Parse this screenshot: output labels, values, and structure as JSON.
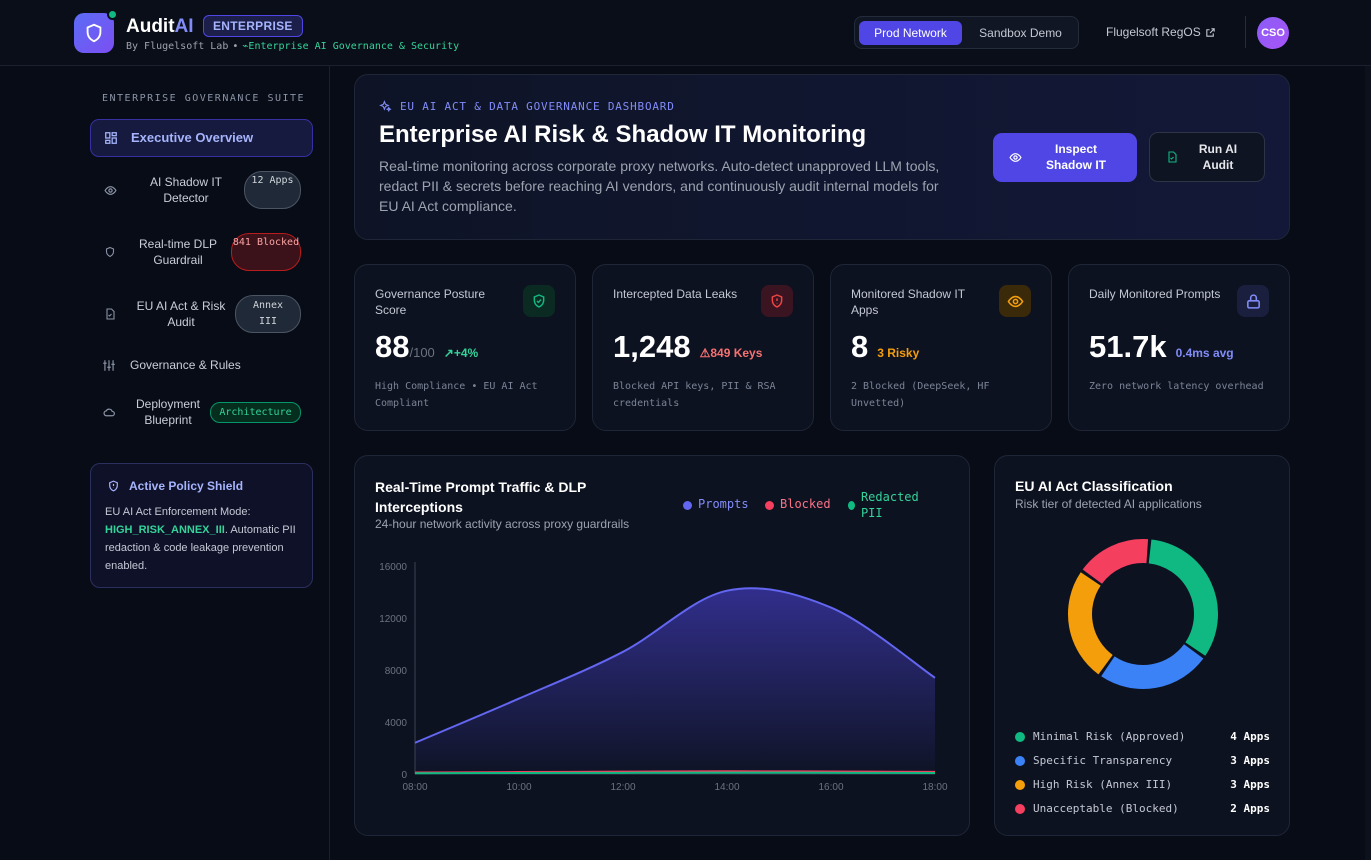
{
  "header": {
    "brand_main": "Audit",
    "brand_accent": "AI",
    "edition_badge": "ENTERPRISE",
    "byline": "By Flugelsoft Lab",
    "byline_sep": "•",
    "tagline": "Enterprise AI Governance & Security",
    "network_tabs": [
      {
        "label": "Prod Network",
        "active": true
      },
      {
        "label": "Sandbox Demo",
        "active": false
      }
    ],
    "regos_link": "Flugelsoft RegOS",
    "avatar": "CSO"
  },
  "sidebar": {
    "section_title": "ENTERPRISE GOVERNANCE SUITE",
    "items": [
      {
        "label": "Executive Overview",
        "icon": "grid-icon",
        "active": true
      },
      {
        "label": "AI Shadow IT Detector",
        "icon": "eye-icon",
        "badge": "12 Apps"
      },
      {
        "label": "Real-time DLP Guardrail",
        "icon": "shield-icon",
        "badge": "841 Blocked"
      },
      {
        "label": "EU AI Act & Risk Audit",
        "icon": "file-check-icon",
        "badge": "Annex III"
      },
      {
        "label": "Governance & Rules",
        "icon": "sliders-icon"
      },
      {
        "label": "Deployment Blueprint",
        "icon": "cloud-icon",
        "badge": "Architecture"
      }
    ],
    "policy": {
      "title": "Active Policy Shield",
      "text_before": "EU AI Act Enforcement Mode: ",
      "mode": "HIGH_RISK_ANNEX_III",
      "text_after": ". Automatic PII redaction & code leakage prevention enabled."
    }
  },
  "hero": {
    "tag": "EU AI ACT & DATA GOVERNANCE DASHBOARD",
    "title": "Enterprise AI Risk & Shadow IT Monitoring",
    "description": "Real-time monitoring across corporate proxy networks. Auto-detect unapproved LLM tools, redact PII & secrets before reaching AI vendors, and continuously audit internal models for EU AI Act compliance.",
    "inspect_button": "Inspect Shadow IT",
    "audit_button": "Run AI Audit"
  },
  "stats": [
    {
      "label": "Governance Posture Score",
      "value": "88",
      "suffix": "/100",
      "delta": "+4%",
      "delta_color": "#34d399",
      "footer": "High Compliance • EU AI Act Compliant",
      "icon": "shield-check-icon",
      "icon_color": "#10b981"
    },
    {
      "label": "Intercepted Data Leaks",
      "value": "1,248",
      "delta": "849 Keys",
      "delta_color": "#f87171",
      "footer": "Blocked API keys, PII & RSA credentials",
      "icon": "shield-alert-icon",
      "icon_color": "#ef4444"
    },
    {
      "label": "Monitored Shadow IT Apps",
      "value": "8",
      "delta": "3 Risky",
      "delta_color": "#f59e0b",
      "footer": "2 Blocked (DeepSeek, HF Unvetted)",
      "icon": "eye-icon",
      "icon_color": "#f59e0b"
    },
    {
      "label": "Daily Monitored Prompts",
      "value": "51.7k",
      "delta": "0.4ms avg",
      "delta_color": "#818cf8",
      "footer": "Zero network latency overhead",
      "icon": "lock-icon",
      "icon_color": "#818cf8"
    }
  ],
  "traffic_chart": {
    "title": "Real-Time Prompt Traffic & DLP Interceptions",
    "subtitle": "24-hour network activity across proxy guardrails",
    "legend": [
      {
        "name": "Prompts",
        "color": "#6366f1"
      },
      {
        "name": "Blocked",
        "color": "#f43f5e"
      },
      {
        "name": "Redacted PII",
        "color": "#10b981"
      }
    ]
  },
  "chart_data": [
    {
      "type": "area",
      "x": [
        "08:00",
        "10:00",
        "12:00",
        "14:00",
        "16:00",
        "18:00"
      ],
      "ylim": [
        0,
        16000
      ],
      "yticks": [
        0,
        4000,
        8000,
        12000,
        16000
      ],
      "series": [
        {
          "name": "Prompts",
          "values": [
            2400,
            5800,
            9400,
            14100,
            12800,
            7400
          ]
        },
        {
          "name": "Blocked",
          "values": [
            120,
            150,
            180,
            210,
            190,
            160
          ]
        },
        {
          "name": "Redacted PII",
          "values": [
            60,
            80,
            90,
            110,
            95,
            80
          ]
        }
      ]
    },
    {
      "type": "pie",
      "title": "EU AI Act Classification",
      "subtitle": "Risk tier of detected AI applications",
      "categories": [
        "Minimal Risk (Approved)",
        "Specific Transparency",
        "High Risk (Annex III)",
        "Unacceptable (Blocked)"
      ],
      "values": [
        4,
        3,
        3,
        2
      ],
      "labels": [
        "4 Apps",
        "3 Apps",
        "3 Apps",
        "2 Apps"
      ],
      "colors": [
        "#10b981",
        "#3b82f6",
        "#f59e0b",
        "#f43f5e"
      ]
    }
  ]
}
